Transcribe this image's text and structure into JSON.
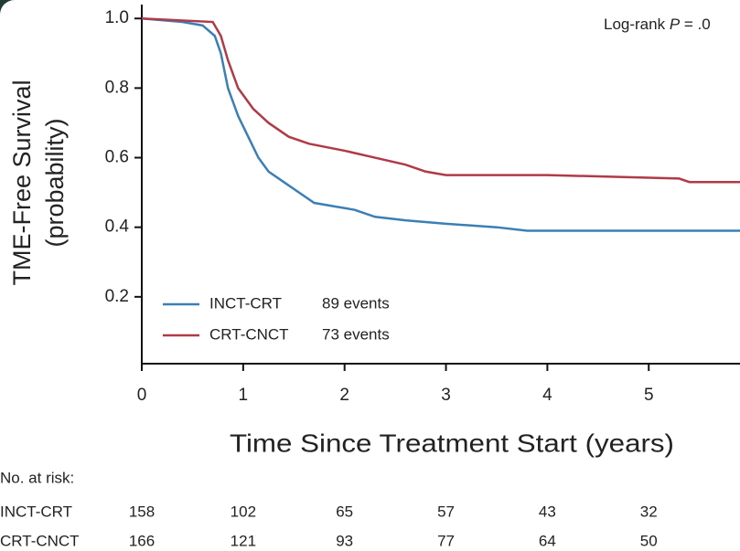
{
  "chart_data": {
    "type": "line",
    "step": true,
    "ylabel": [
      "TME-Free Survival",
      "(probability)"
    ],
    "xlabel": "Time Since Treatment Start (years)",
    "annotation": [
      "Log-rank ",
      "P",
      " = .0"
    ],
    "xlim": [
      0,
      5.9
    ],
    "ylim": [
      0,
      1.04
    ],
    "xticks": [
      0,
      1,
      2,
      3,
      4,
      5
    ],
    "yticks": [
      0.2,
      0.4,
      0.6,
      0.8,
      {
        "value": 1,
        "label": "1.0"
      }
    ],
    "series": [
      {
        "name": "INCT-CRT",
        "events": "89 events",
        "color": "#3a7fb5",
        "x": [
          0,
          0.4,
          0.6,
          0.72,
          0.78,
          0.85,
          0.95,
          1.05,
          1.15,
          1.25,
          1.4,
          1.55,
          1.7,
          1.9,
          2.1,
          2.3,
          2.6,
          3.0,
          3.5,
          3.8,
          5.9
        ],
        "values": [
          1.0,
          0.99,
          0.98,
          0.95,
          0.9,
          0.8,
          0.72,
          0.66,
          0.6,
          0.56,
          0.53,
          0.5,
          0.47,
          0.46,
          0.45,
          0.43,
          0.42,
          0.41,
          0.4,
          0.39,
          0.39
        ]
      },
      {
        "name": "CRT-CNCT",
        "events": "73 events",
        "color": "#b03a48",
        "x": [
          0,
          0.7,
          0.78,
          0.85,
          0.95,
          1.1,
          1.25,
          1.45,
          1.65,
          2.0,
          2.3,
          2.6,
          2.8,
          3.0,
          4.0,
          5.3,
          5.4,
          5.9
        ],
        "values": [
          1.0,
          0.99,
          0.95,
          0.88,
          0.8,
          0.74,
          0.7,
          0.66,
          0.64,
          0.62,
          0.6,
          0.58,
          0.56,
          0.55,
          0.55,
          0.54,
          0.53,
          0.53
        ]
      }
    ]
  },
  "risk_table": {
    "title": "No. at risk:",
    "rows": [
      {
        "name": "INCT-CRT",
        "values": [
          158,
          102,
          65,
          57,
          43,
          32
        ]
      },
      {
        "name": "CRT-CNCT",
        "values": [
          166,
          121,
          93,
          77,
          64,
          50
        ]
      }
    ]
  }
}
